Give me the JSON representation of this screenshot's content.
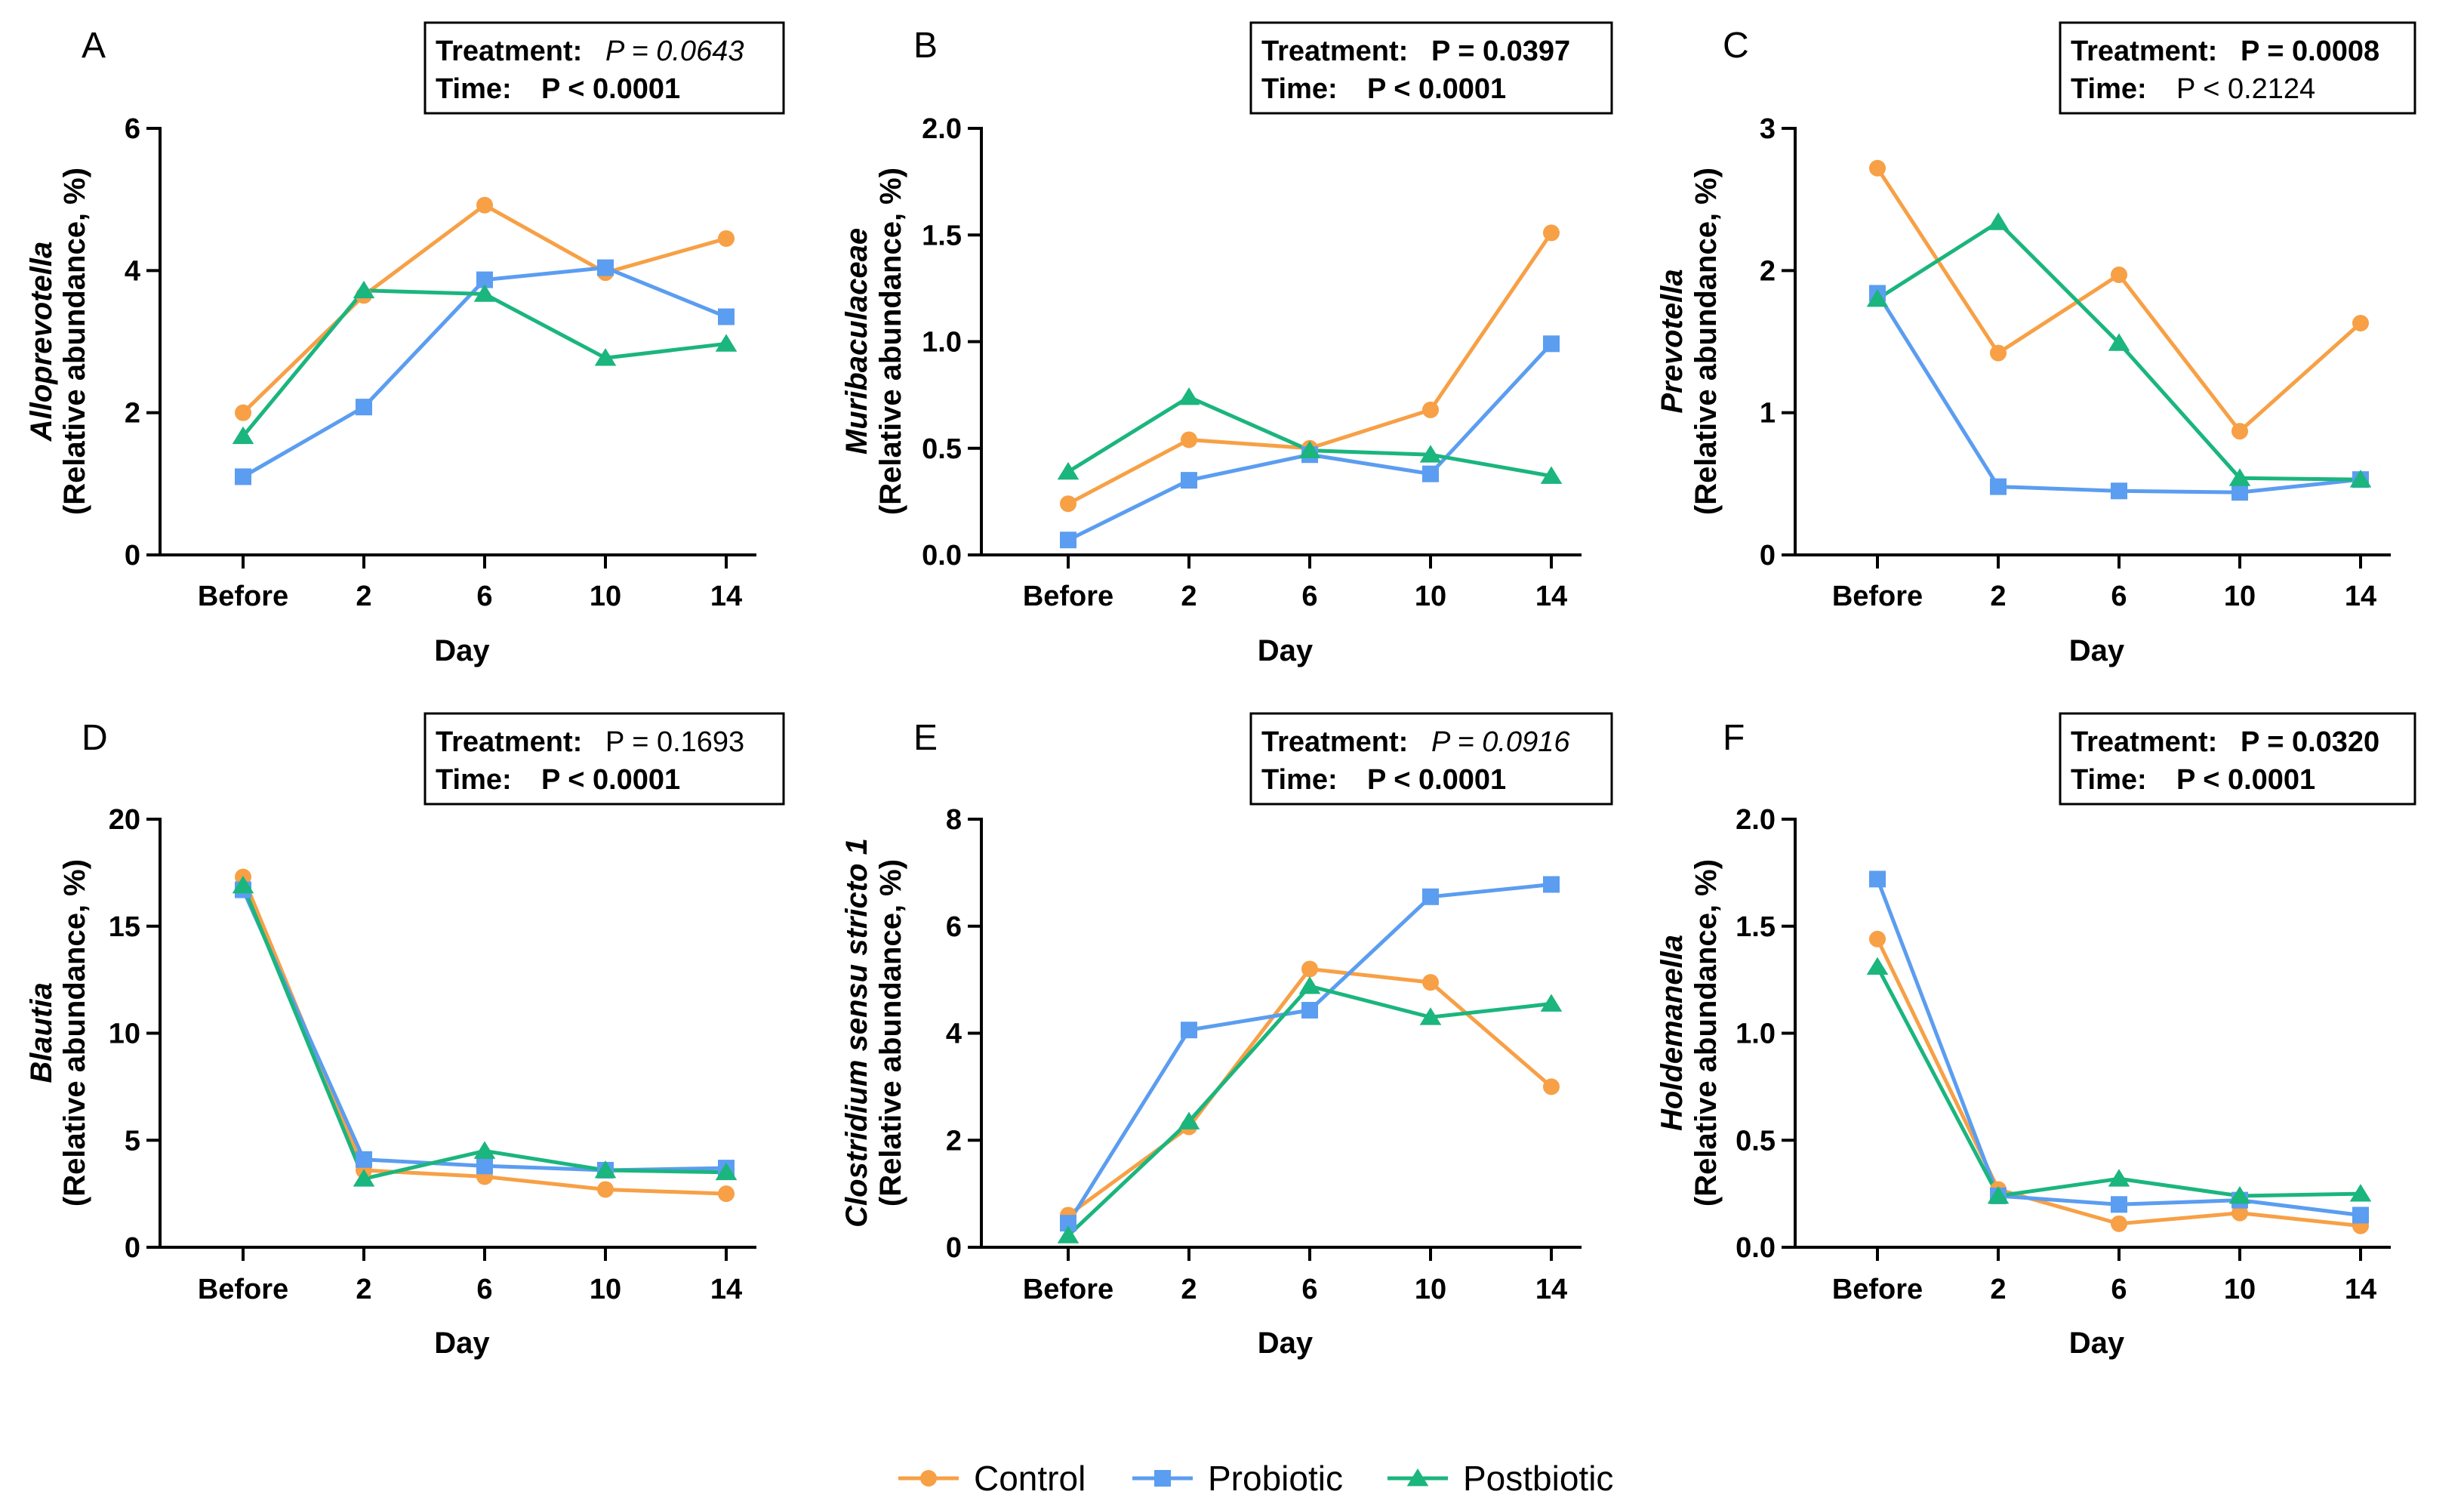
{
  "legend": [
    {
      "name": "Control",
      "color": "#F7A046",
      "marker": "circle"
    },
    {
      "name": "Probiotic",
      "color": "#5B9DF0",
      "marker": "square"
    },
    {
      "name": "Postbiotic",
      "color": "#1BB57E",
      "marker": "triangle"
    }
  ],
  "chart_data": [
    {
      "panel": "A",
      "type": "line",
      "xlabel": "Day",
      "ylabel_italic": "Alloprevotella",
      "ylabel_sub": "(Relative abundance,  %)",
      "ylim": [
        0,
        6
      ],
      "yticks": [
        "0",
        "2",
        "4",
        "6"
      ],
      "ytick_values": [
        0,
        2,
        4,
        6
      ],
      "categories": [
        "Before",
        "2",
        "6",
        "10",
        "14"
      ],
      "stats": {
        "treatment_label": "Treatment:",
        "treatment_p": "P = 0.0643",
        "treatment_style": "italic",
        "time_label": "Time:",
        "time_p": "P < 0.0001",
        "time_style": "bold"
      },
      "series": [
        {
          "name": "Control",
          "values": [
            2.0,
            3.65,
            4.92,
            3.97,
            4.45
          ]
        },
        {
          "name": "Probiotic",
          "values": [
            1.1,
            2.08,
            3.87,
            4.04,
            3.35
          ]
        },
        {
          "name": "Postbiotic",
          "values": [
            1.67,
            3.72,
            3.67,
            2.77,
            2.97
          ]
        }
      ]
    },
    {
      "panel": "B",
      "type": "line",
      "xlabel": "Day",
      "ylabel_italic": "Muribaculaceae",
      "ylabel_sub": "(Relative abundance,  %)",
      "ylim": [
        0,
        2
      ],
      "yticks": [
        "0.0",
        "0.5",
        "1.0",
        "1.5",
        "2.0"
      ],
      "ytick_values": [
        0,
        0.5,
        1.0,
        1.5,
        2.0
      ],
      "categories": [
        "Before",
        "2",
        "6",
        "10",
        "14"
      ],
      "stats": {
        "treatment_label": "Treatment:",
        "treatment_p": "P = 0.0397",
        "treatment_style": "bold",
        "time_label": "Time:",
        "time_p": "P < 0.0001",
        "time_style": "bold"
      },
      "series": [
        {
          "name": "Control",
          "values": [
            0.24,
            0.54,
            0.5,
            0.68,
            1.51
          ]
        },
        {
          "name": "Probiotic",
          "values": [
            0.07,
            0.35,
            0.47,
            0.38,
            0.99
          ]
        },
        {
          "name": "Postbiotic",
          "values": [
            0.39,
            0.74,
            0.49,
            0.47,
            0.37
          ]
        }
      ]
    },
    {
      "panel": "C",
      "type": "line",
      "xlabel": "Day",
      "ylabel_italic": "Prevotella",
      "ylabel_sub": "(Relative abundance,  %)",
      "ylim": [
        0,
        3
      ],
      "yticks": [
        "0",
        "1",
        "2",
        "3"
      ],
      "ytick_values": [
        0,
        1,
        2,
        3
      ],
      "categories": [
        "Before",
        "2",
        "6",
        "10",
        "14"
      ],
      "stats": {
        "treatment_label": "Treatment:",
        "treatment_p": "P = 0.0008",
        "treatment_style": "bold",
        "time_label": "Time:",
        "time_p": "P < 0.2124",
        "time_style": "normal"
      },
      "series": [
        {
          "name": "Control",
          "values": [
            2.72,
            1.42,
            1.97,
            0.87,
            1.63
          ]
        },
        {
          "name": "Probiotic",
          "values": [
            1.84,
            0.48,
            0.45,
            0.44,
            0.53
          ]
        },
        {
          "name": "Postbiotic",
          "values": [
            1.8,
            2.34,
            1.49,
            0.54,
            0.53
          ]
        }
      ]
    },
    {
      "panel": "D",
      "type": "line",
      "xlabel": "Day",
      "ylabel_italic": "Blautia",
      "ylabel_sub": "(Relative abundance,  %)",
      "ylim": [
        0,
        20
      ],
      "yticks": [
        "0",
        "5",
        "10",
        "15",
        "20"
      ],
      "ytick_values": [
        0,
        5,
        10,
        15,
        20
      ],
      "categories": [
        "Before",
        "2",
        "6",
        "10",
        "14"
      ],
      "stats": {
        "treatment_label": "Treatment:",
        "treatment_p": "P = 0.1693",
        "treatment_style": "normal",
        "time_label": "Time:",
        "time_p": "P < 0.0001",
        "time_style": "bold"
      },
      "series": [
        {
          "name": "Control",
          "values": [
            17.3,
            3.6,
            3.3,
            2.7,
            2.5
          ]
        },
        {
          "name": "Probiotic",
          "values": [
            16.7,
            4.1,
            3.8,
            3.6,
            3.7
          ]
        },
        {
          "name": "Postbiotic",
          "values": [
            16.9,
            3.2,
            4.5,
            3.6,
            3.5
          ]
        }
      ]
    },
    {
      "panel": "E",
      "type": "line",
      "xlabel": "Day",
      "ylabel_italic": "Clostridium sensu stricto 1",
      "ylabel_sub": "(Relative abundance,  %)",
      "ylim": [
        0,
        8
      ],
      "yticks": [
        "0",
        "2",
        "4",
        "6",
        "8"
      ],
      "ytick_values": [
        0,
        2,
        4,
        6,
        8
      ],
      "categories": [
        "Before",
        "2",
        "6",
        "10",
        "14"
      ],
      "stats": {
        "treatment_label": "Treatment:",
        "treatment_p": "P = 0.0916",
        "treatment_style": "italic",
        "time_label": "Time:",
        "time_p": "P < 0.0001",
        "time_style": "bold"
      },
      "series": [
        {
          "name": "Control",
          "values": [
            0.6,
            2.25,
            5.2,
            4.95,
            3.0
          ]
        },
        {
          "name": "Probiotic",
          "values": [
            0.45,
            4.06,
            4.43,
            6.55,
            6.78
          ]
        },
        {
          "name": "Postbiotic",
          "values": [
            0.22,
            2.35,
            4.88,
            4.3,
            4.55
          ]
        }
      ]
    },
    {
      "panel": "F",
      "type": "line",
      "xlabel": "Day",
      "ylabel_italic": "Holdemanella",
      "ylabel_sub": "(Relative abundance,  %)",
      "ylim": [
        0,
        2
      ],
      "yticks": [
        "0.0",
        "0.5",
        "1.0",
        "1.5",
        "2.0"
      ],
      "ytick_values": [
        0,
        0.5,
        1.0,
        1.5,
        2.0
      ],
      "categories": [
        "Before",
        "2",
        "6",
        "10",
        "14"
      ],
      "stats": {
        "treatment_label": "Treatment:",
        "treatment_p": "P = 0.0320",
        "treatment_style": "bold",
        "time_label": "Time:",
        "time_p": "P < 0.0001",
        "time_style": "bold"
      },
      "series": [
        {
          "name": "Control",
          "values": [
            1.44,
            0.27,
            0.11,
            0.16,
            0.1
          ]
        },
        {
          "name": "Probiotic",
          "values": [
            1.72,
            0.24,
            0.2,
            0.22,
            0.15
          ]
        },
        {
          "name": "Postbiotic",
          "values": [
            1.31,
            0.24,
            0.32,
            0.24,
            0.25
          ]
        }
      ]
    }
  ]
}
